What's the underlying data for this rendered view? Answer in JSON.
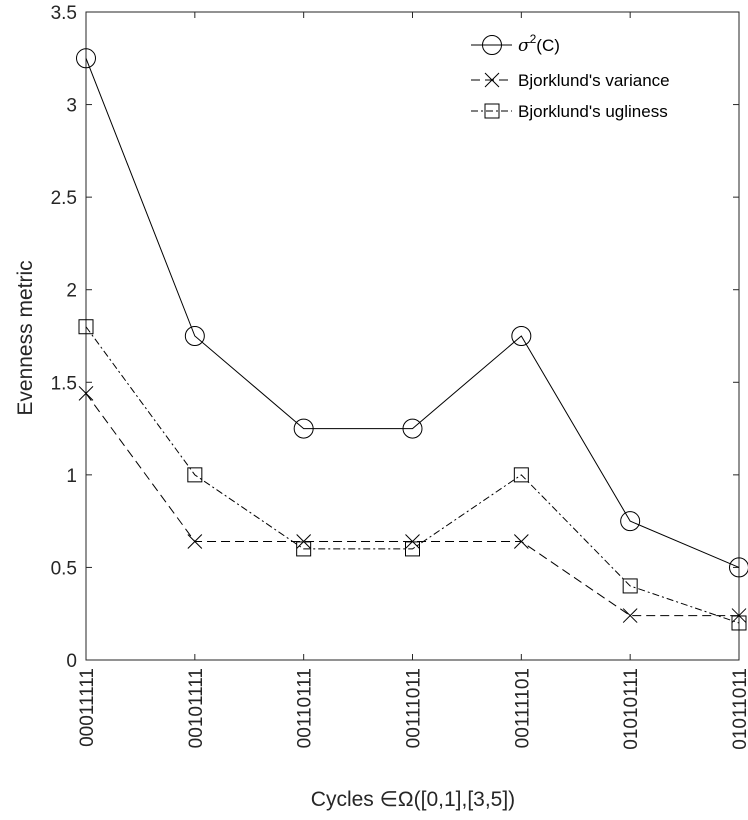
{
  "chart_data": {
    "type": "line",
    "xlabel": "Cycles ∈Ω([0,1],[3,5])",
    "ylabel": "Evenness metric",
    "categories": [
      "00011111",
      "00101111",
      "00110111",
      "00111011",
      "00111101",
      "01010111",
      "01011011"
    ],
    "ylim": [
      0,
      3.5
    ],
    "yticks": [
      "0",
      "0.5",
      "1",
      "1.5",
      "2",
      "2.5",
      "3",
      "3.5"
    ],
    "grid": false,
    "legend_position": "top-right",
    "series": [
      {
        "name": "σ²(C)",
        "marker": "circle",
        "line_style": "solid",
        "values": [
          3.25,
          1.75,
          1.25,
          1.25,
          1.75,
          0.75,
          0.5
        ]
      },
      {
        "name": "Bjorklund's variance",
        "marker": "x",
        "line_style": "dashed",
        "values": [
          1.44,
          0.64,
          0.64,
          0.64,
          0.64,
          0.24,
          0.24
        ]
      },
      {
        "name": "Bjorklund's ugliness",
        "marker": "square",
        "line_style": "dashdot",
        "values": [
          1.8,
          1.0,
          0.6,
          0.6,
          1.0,
          0.4,
          0.2
        ]
      }
    ]
  }
}
